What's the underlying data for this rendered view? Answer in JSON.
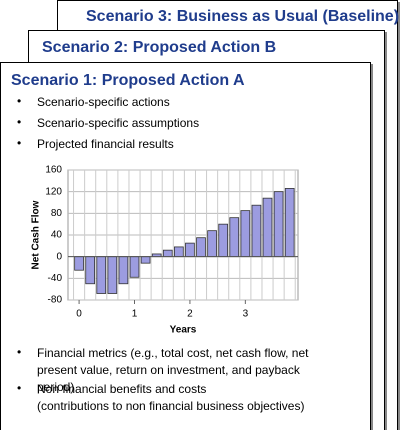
{
  "cards": [
    {
      "title": "Scenario 3: Business as Usual (Baseline)"
    },
    {
      "title": "Scenario 2: Proposed Action B"
    },
    {
      "title": "Scenario 1: Proposed Action A",
      "bullets": [
        "Scenario-specific actions",
        "Scenario-specific assumptions",
        "Projected financial results"
      ],
      "chart_data": {
        "type": "bar",
        "x_label": "Years",
        "y_label": "Net Cash Flow",
        "x": [
          0,
          0.2,
          0.4,
          0.6,
          0.8,
          1.0,
          1.2,
          1.4,
          1.6,
          1.8,
          2.0,
          2.2,
          2.4,
          2.6,
          2.8,
          3.0,
          3.2,
          3.4,
          3.6,
          3.8
        ],
        "values": [
          -25,
          -50,
          -68,
          -68,
          -50,
          -38,
          -12,
          5,
          12,
          18,
          25,
          35,
          48,
          60,
          72,
          85,
          95,
          108,
          120,
          126
        ],
        "color": "#9c9ce0",
        "xlim": [
          -0.2,
          3.95
        ],
        "xticks": [
          0,
          1,
          2,
          3
        ],
        "ylim": [
          -80,
          160
        ],
        "yticks": [
          -80,
          -40,
          0,
          40,
          80,
          120,
          160
        ],
        "grid": true
      },
      "bottom_bullets": [
        {
          "text": "Financial metrics (e.g., total cost, net cash flow, net present value, return on investment, and payback period)"
        },
        {
          "text": "Non financial benefits and costs",
          "detail": "(contributions to non financial business objectives)"
        }
      ]
    }
  ]
}
